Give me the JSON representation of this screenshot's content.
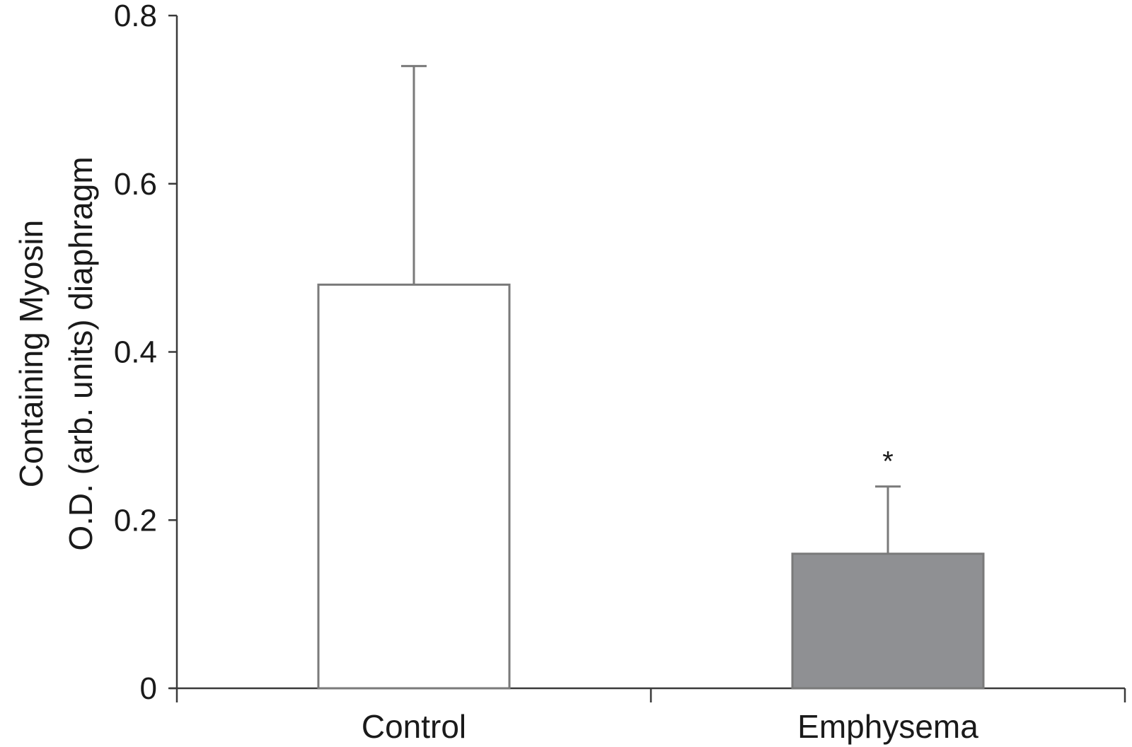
{
  "chart_data": {
    "type": "bar",
    "categories": [
      "Control",
      "Emphysema"
    ],
    "values": [
      0.48,
      0.16
    ],
    "error_upper": [
      0.74,
      0.24
    ],
    "bar_colors": [
      "#ffffff",
      "#8f9093"
    ],
    "edge_color": "#7a7a7a",
    "ylabel_lines": [
      "Containing Myosin",
      "O.D. (arb. units) diaphragm"
    ],
    "xlabel": "",
    "ylim": [
      0,
      0.8
    ],
    "yticks": [
      "0",
      "0.2",
      "0.4",
      "0.6",
      "0.8"
    ],
    "ytick_values": [
      0,
      0.2,
      0.4,
      0.6,
      0.8
    ],
    "annotations": [
      {
        "category": "Emphysema",
        "text": "*"
      }
    ],
    "grid": false
  }
}
